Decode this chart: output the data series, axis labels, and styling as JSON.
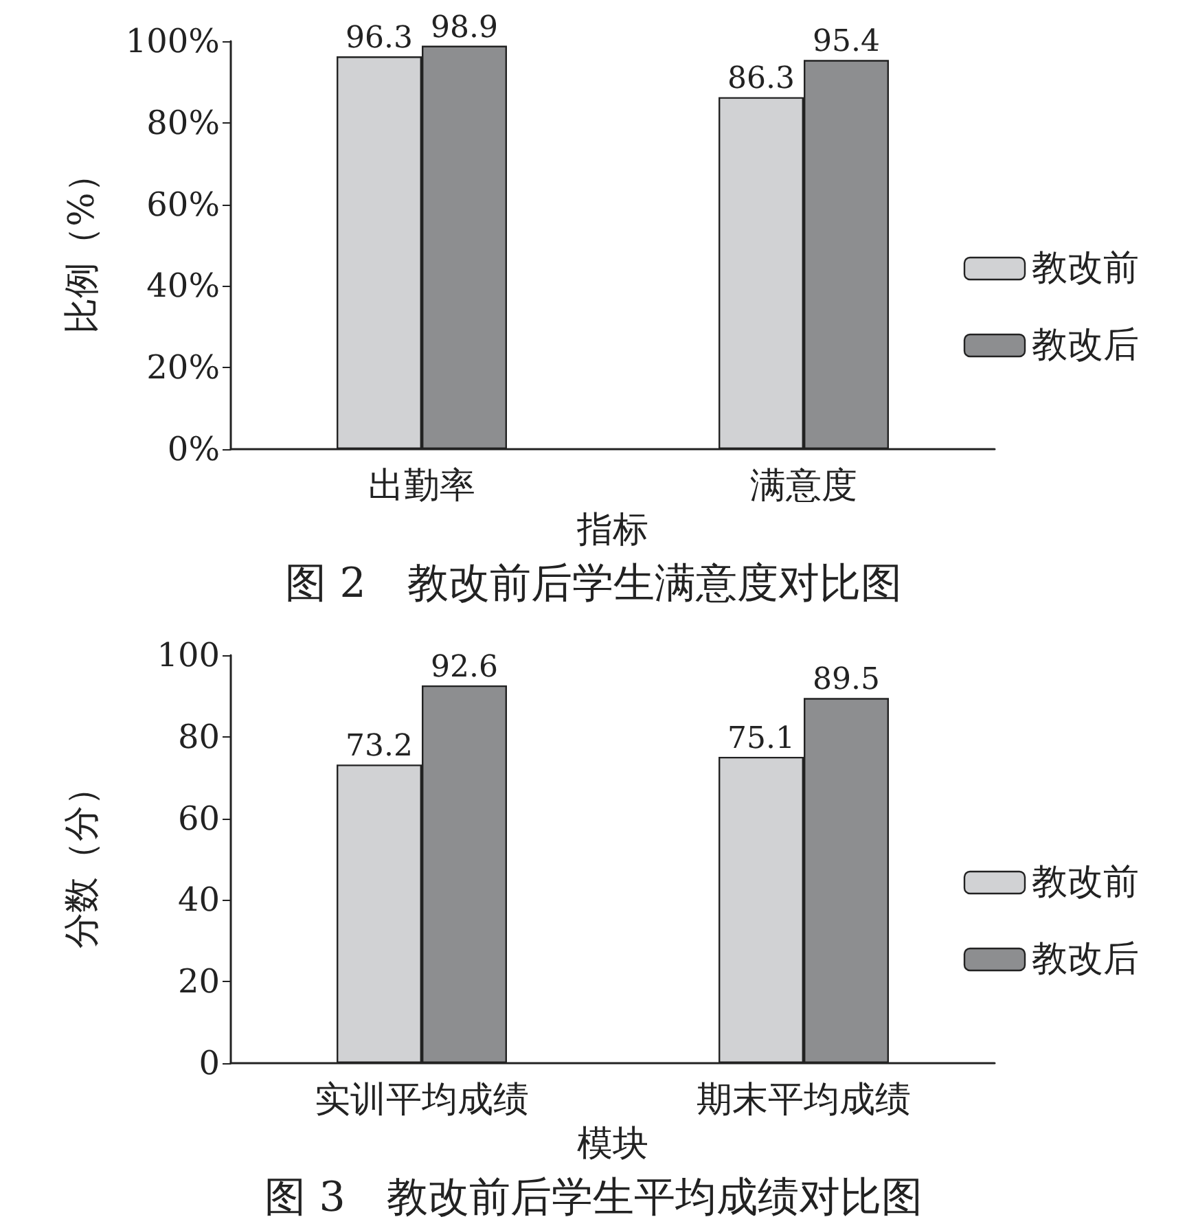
{
  "chart_data": [
    {
      "type": "bar",
      "title": "图 2　教改前后学生满意度对比图",
      "xlabel": "指标",
      "ylabel": "比例（%）",
      "categories": [
        "出勤率",
        "满意度"
      ],
      "series": [
        {
          "name": "教改前",
          "color": "#d1d2d4",
          "values": [
            96.3,
            86.3
          ]
        },
        {
          "name": "教改后",
          "color": "#8d8e90",
          "values": [
            98.9,
            95.4
          ]
        }
      ],
      "ylim": [
        0,
        100
      ],
      "yticks": [
        {
          "value": 0,
          "label": "0%"
        },
        {
          "value": 20,
          "label": "20%"
        },
        {
          "value": 40,
          "label": "40%"
        },
        {
          "value": 60,
          "label": "60%"
        },
        {
          "value": 80,
          "label": "80%"
        },
        {
          "value": 100,
          "label": "100%"
        }
      ],
      "data_labels": true,
      "grid": false,
      "legend": "right"
    },
    {
      "type": "bar",
      "title": "图 3　教改前后学生平均成绩对比图",
      "xlabel": "模块",
      "ylabel": "分数（分）",
      "categories": [
        "实训平均成绩",
        "期末平均成绩"
      ],
      "series": [
        {
          "name": "教改前",
          "color": "#d1d2d4",
          "values": [
            73.2,
            75.1
          ]
        },
        {
          "name": "教改后",
          "color": "#8d8e90",
          "values": [
            92.6,
            89.5
          ]
        }
      ],
      "ylim": [
        0,
        100
      ],
      "yticks": [
        0,
        20,
        40,
        60,
        80,
        100
      ],
      "data_labels": true,
      "grid": false,
      "legend": "right"
    }
  ]
}
